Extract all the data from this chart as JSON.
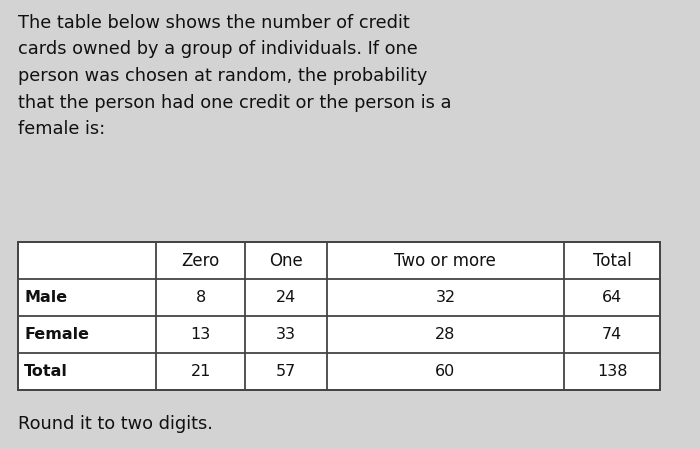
{
  "background_color": "#d3d3d3",
  "paragraph_text": "The table below shows the number of credit\ncards owned by a group of individuals. If one\nperson was chosen at random, the probability\nthat the person had one credit or the person is a\nfemale is:",
  "paragraph_fontsize": 12.8,
  "footer_text": "Round it to two digits.",
  "footer_fontsize": 12.8,
  "table_col_labels": [
    "",
    "Zero",
    "One",
    "Two or more",
    "Total"
  ],
  "table_row_labels": [
    "Male",
    "Female",
    "Total"
  ],
  "table_data": [
    [
      "8",
      "24",
      "32",
      "64"
    ],
    [
      "13",
      "33",
      "28",
      "74"
    ],
    [
      "21",
      "57",
      "60",
      "138"
    ]
  ],
  "header_fontsize": 12.0,
  "cell_fontsize": 11.5,
  "text_color": "#111111",
  "table_line_color": "#444444",
  "col_weights": [
    0.195,
    0.125,
    0.115,
    0.335,
    0.135
  ]
}
